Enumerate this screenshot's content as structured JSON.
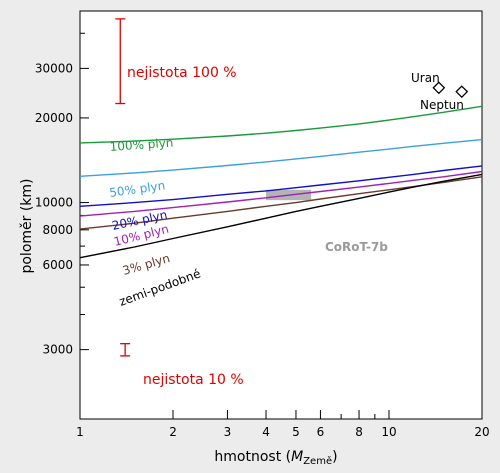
{
  "chart_data": {
    "type": "line",
    "xlabel": "hmotnost (",
    "xlabel_var": "M",
    "xlabel_sub": "Země",
    "xlabel_close": ")",
    "ylabel": "poloměr (km)",
    "xscale": "log",
    "yscale": "log",
    "xlim": [
      1,
      20
    ],
    "ylim": [
      1700,
      48000
    ],
    "xticks": [
      1,
      2,
      3,
      4,
      5,
      6,
      8,
      10,
      20
    ],
    "xticks_minor": [
      7,
      9
    ],
    "yticks": [
      3000,
      6000,
      8000,
      10000,
      20000,
      30000
    ],
    "yticks_minor": [
      4000,
      5000,
      7000,
      9000,
      40000
    ],
    "x": [
      1,
      1.5,
      2,
      3,
      4,
      5,
      6,
      8,
      10,
      12,
      15,
      20
    ],
    "series": [
      {
        "name": "100% plyn",
        "color": "#1a9a3a",
        "values": [
          16300,
          16550,
          16800,
          17250,
          17650,
          18050,
          18400,
          19050,
          19650,
          20200,
          20950,
          22000
        ]
      },
      {
        "name": "50% plyn",
        "color": "#3aa0e0",
        "values": [
          12400,
          12750,
          13050,
          13550,
          13950,
          14300,
          14600,
          15100,
          15500,
          15850,
          16250,
          16750
        ]
      },
      {
        "name": "20% plyn",
        "color": "#1010c8",
        "values": [
          9700,
          10000,
          10250,
          10700,
          11000,
          11300,
          11550,
          11950,
          12300,
          12600,
          13000,
          13500
        ]
      },
      {
        "name": "10% plyn",
        "color": "#a020b8",
        "values": [
          8950,
          9300,
          9600,
          10050,
          10400,
          10700,
          10950,
          11350,
          11700,
          12000,
          12350,
          12900
        ]
      },
      {
        "name": "3% plyn",
        "color": "#6a3a2a",
        "values": [
          8050,
          8450,
          8800,
          9300,
          9700,
          10000,
          10300,
          10750,
          11100,
          11400,
          11800,
          12350
        ]
      },
      {
        "name": "zemi-podobné",
        "color": "#000000",
        "values": [
          6370,
          6950,
          7450,
          8200,
          8800,
          9300,
          9700,
          10350,
          10900,
          11350,
          11900,
          12600
        ]
      }
    ],
    "points": [
      {
        "label": "Uran",
        "x": 14.5,
        "y": 25600
      },
      {
        "label": "Neptun",
        "x": 17.2,
        "y": 24800
      }
    ],
    "region": {
      "label": "CoRoT-7b",
      "x": [
        4,
        5.6
      ],
      "y": [
        10200,
        11100
      ],
      "color": "#b4b4b4"
    },
    "annotations": [
      {
        "text": "nejistota 100 %",
        "bar_x": 1.35,
        "bar_y": [
          22500,
          45000
        ]
      },
      {
        "text": "nejistota 10 %",
        "bar_x": 1.4,
        "bar_y": [
          2850,
          3150
        ]
      }
    ]
  }
}
